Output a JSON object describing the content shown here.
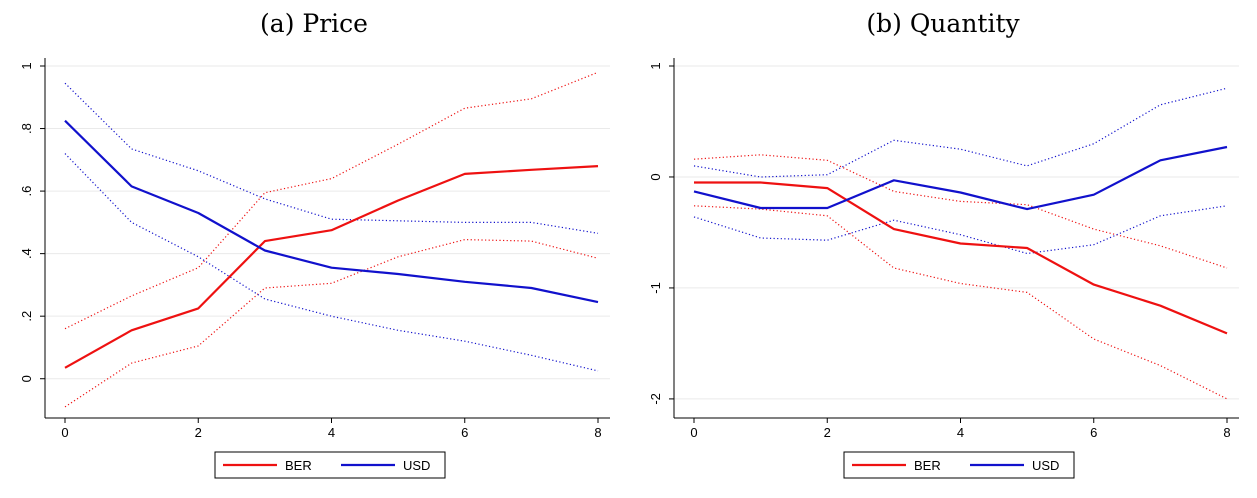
{
  "chart_data": [
    {
      "type": "line",
      "title": "(a) Price",
      "xlabel": "",
      "ylabel": "",
      "xlim": [
        0,
        8
      ],
      "ylim": [
        -0.1,
        1.0
      ],
      "x_ticks": [
        0,
        2,
        4,
        6,
        8
      ],
      "x_tick_labels": [
        "0",
        "2",
        "4",
        "6",
        "8"
      ],
      "y_ticks": [
        0,
        0.2,
        0.4,
        0.6,
        0.8,
        1
      ],
      "y_tick_labels": [
        "0",
        ".2",
        ".4",
        ".6",
        ".8",
        "1"
      ],
      "grid": true,
      "legend_position": "bottom",
      "x": [
        0,
        1,
        2,
        3,
        4,
        5,
        6,
        7,
        8
      ],
      "series": [
        {
          "name": "BER",
          "color": "#ee1111",
          "style": "solid",
          "values": [
            0.035,
            0.155,
            0.225,
            0.44,
            0.475,
            0.57,
            0.655,
            0.668,
            0.68
          ]
        },
        {
          "name": "",
          "color": "#ee1111",
          "style": "dotted",
          "values": [
            0.16,
            0.265,
            0.355,
            0.595,
            0.64,
            0.75,
            0.865,
            0.895,
            0.98
          ]
        },
        {
          "name": "",
          "color": "#ee1111",
          "style": "dotted",
          "values": [
            -0.09,
            0.05,
            0.105,
            0.29,
            0.305,
            0.39,
            0.445,
            0.44,
            0.385
          ]
        },
        {
          "name": "USD",
          "color": "#1111cc",
          "style": "solid",
          "values": [
            0.825,
            0.615,
            0.53,
            0.41,
            0.355,
            0.335,
            0.31,
            0.29,
            0.245
          ]
        },
        {
          "name": "",
          "color": "#1111cc",
          "style": "dotted",
          "values": [
            0.945,
            0.735,
            0.665,
            0.575,
            0.51,
            0.505,
            0.5,
            0.5,
            0.465
          ]
        },
        {
          "name": "",
          "color": "#1111cc",
          "style": "dotted",
          "values": [
            0.72,
            0.5,
            0.39,
            0.255,
            0.2,
            0.155,
            0.12,
            0.075,
            0.025
          ]
        }
      ]
    },
    {
      "type": "line",
      "title": "(b) Quantity",
      "xlabel": "",
      "ylabel": "",
      "xlim": [
        0,
        8
      ],
      "ylim": [
        -2.1,
        1.0
      ],
      "x_ticks": [
        0,
        2,
        4,
        6,
        8
      ],
      "x_tick_labels": [
        "0",
        "2",
        "4",
        "6",
        "8"
      ],
      "y_ticks": [
        -2,
        -1,
        0,
        1
      ],
      "y_tick_labels": [
        "-2",
        "-1",
        "0",
        "1"
      ],
      "grid": true,
      "legend_position": "bottom",
      "x": [
        0,
        1,
        2,
        3,
        4,
        5,
        6,
        7,
        8
      ],
      "series": [
        {
          "name": "BER",
          "color": "#ee1111",
          "style": "solid",
          "values": [
            -0.05,
            -0.05,
            -0.1,
            -0.47,
            -0.6,
            -0.64,
            -0.97,
            -1.16,
            -1.41
          ]
        },
        {
          "name": "",
          "color": "#ee1111",
          "style": "dotted",
          "values": [
            0.16,
            0.2,
            0.15,
            -0.13,
            -0.22,
            -0.25,
            -0.47,
            -0.62,
            -0.82
          ]
        },
        {
          "name": "",
          "color": "#ee1111",
          "style": "dotted",
          "values": [
            -0.26,
            -0.29,
            -0.35,
            -0.82,
            -0.96,
            -1.04,
            -1.46,
            -1.7,
            -2.0
          ]
        },
        {
          "name": "USD",
          "color": "#1111cc",
          "style": "solid",
          "values": [
            -0.13,
            -0.28,
            -0.28,
            -0.03,
            -0.14,
            -0.29,
            -0.16,
            0.15,
            0.27
          ]
        },
        {
          "name": "",
          "color": "#1111cc",
          "style": "dotted",
          "values": [
            0.1,
            0.0,
            0.02,
            0.33,
            0.25,
            0.1,
            0.3,
            0.65,
            0.8
          ]
        },
        {
          "name": "",
          "color": "#1111cc",
          "style": "dotted",
          "values": [
            -0.36,
            -0.55,
            -0.57,
            -0.39,
            -0.52,
            -0.69,
            -0.61,
            -0.35,
            -0.26
          ]
        }
      ]
    }
  ]
}
